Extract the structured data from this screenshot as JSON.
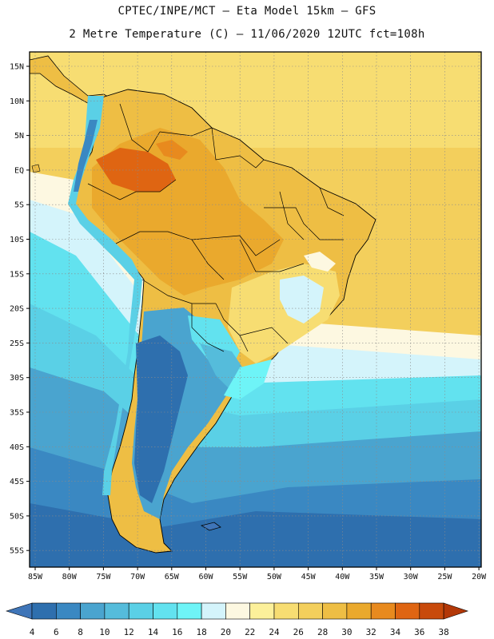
{
  "header": {
    "line1": "CPTEC/INPE/MCT –  Eta Model 15km – GFS",
    "line2": "2 Metre Temperature (C) – 11/06/2020 12UTC fct=108h"
  },
  "axes": {
    "lat_labels": [
      "15N",
      "10N",
      "5N",
      "EQ",
      "5S",
      "10S",
      "15S",
      "20S",
      "25S",
      "30S",
      "35S",
      "40S",
      "45S",
      "50S",
      "55S"
    ],
    "lon_labels": [
      "85W",
      "80W",
      "75W",
      "70W",
      "65W",
      "60W",
      "55W",
      "50W",
      "45W",
      "40W",
      "35W",
      "30W",
      "25W",
      "20W"
    ]
  },
  "colorbar": {
    "labels": [
      "4",
      "6",
      "8",
      "10",
      "12",
      "14",
      "16",
      "18",
      "20",
      "22",
      "24",
      "26",
      "28",
      "30",
      "32",
      "34",
      "36",
      "38"
    ],
    "colors": [
      "#3f75b8",
      "#2e6fae",
      "#3a88c2",
      "#4aa4cf",
      "#55bcdb",
      "#5ad0e6",
      "#62e2ef",
      "#6ef4f7",
      "#d4f4fb",
      "#fdf8e1",
      "#fcf09a",
      "#f7dd72",
      "#f3cf5c",
      "#eebe44",
      "#eaa92d",
      "#e88a1e",
      "#df6512",
      "#c84a0b",
      "#b33808"
    ]
  },
  "map": {
    "regions": [
      {
        "name": "ocean-warm-north",
        "color": "#f3cf5c"
      },
      {
        "name": "ocean-mid",
        "color": "#55bcdb"
      },
      {
        "name": "ocean-cold-south",
        "color": "#3a88c2"
      },
      {
        "name": "land-hot-north",
        "color": "#eaa92d"
      },
      {
        "name": "land-hottest-core",
        "color": "#df6512"
      },
      {
        "name": "land-warm-brazil",
        "color": "#f3cf5c"
      },
      {
        "name": "andes-cold",
        "color": "#3f75b8"
      },
      {
        "name": "patagonia",
        "color": "#2e6fae"
      }
    ]
  }
}
